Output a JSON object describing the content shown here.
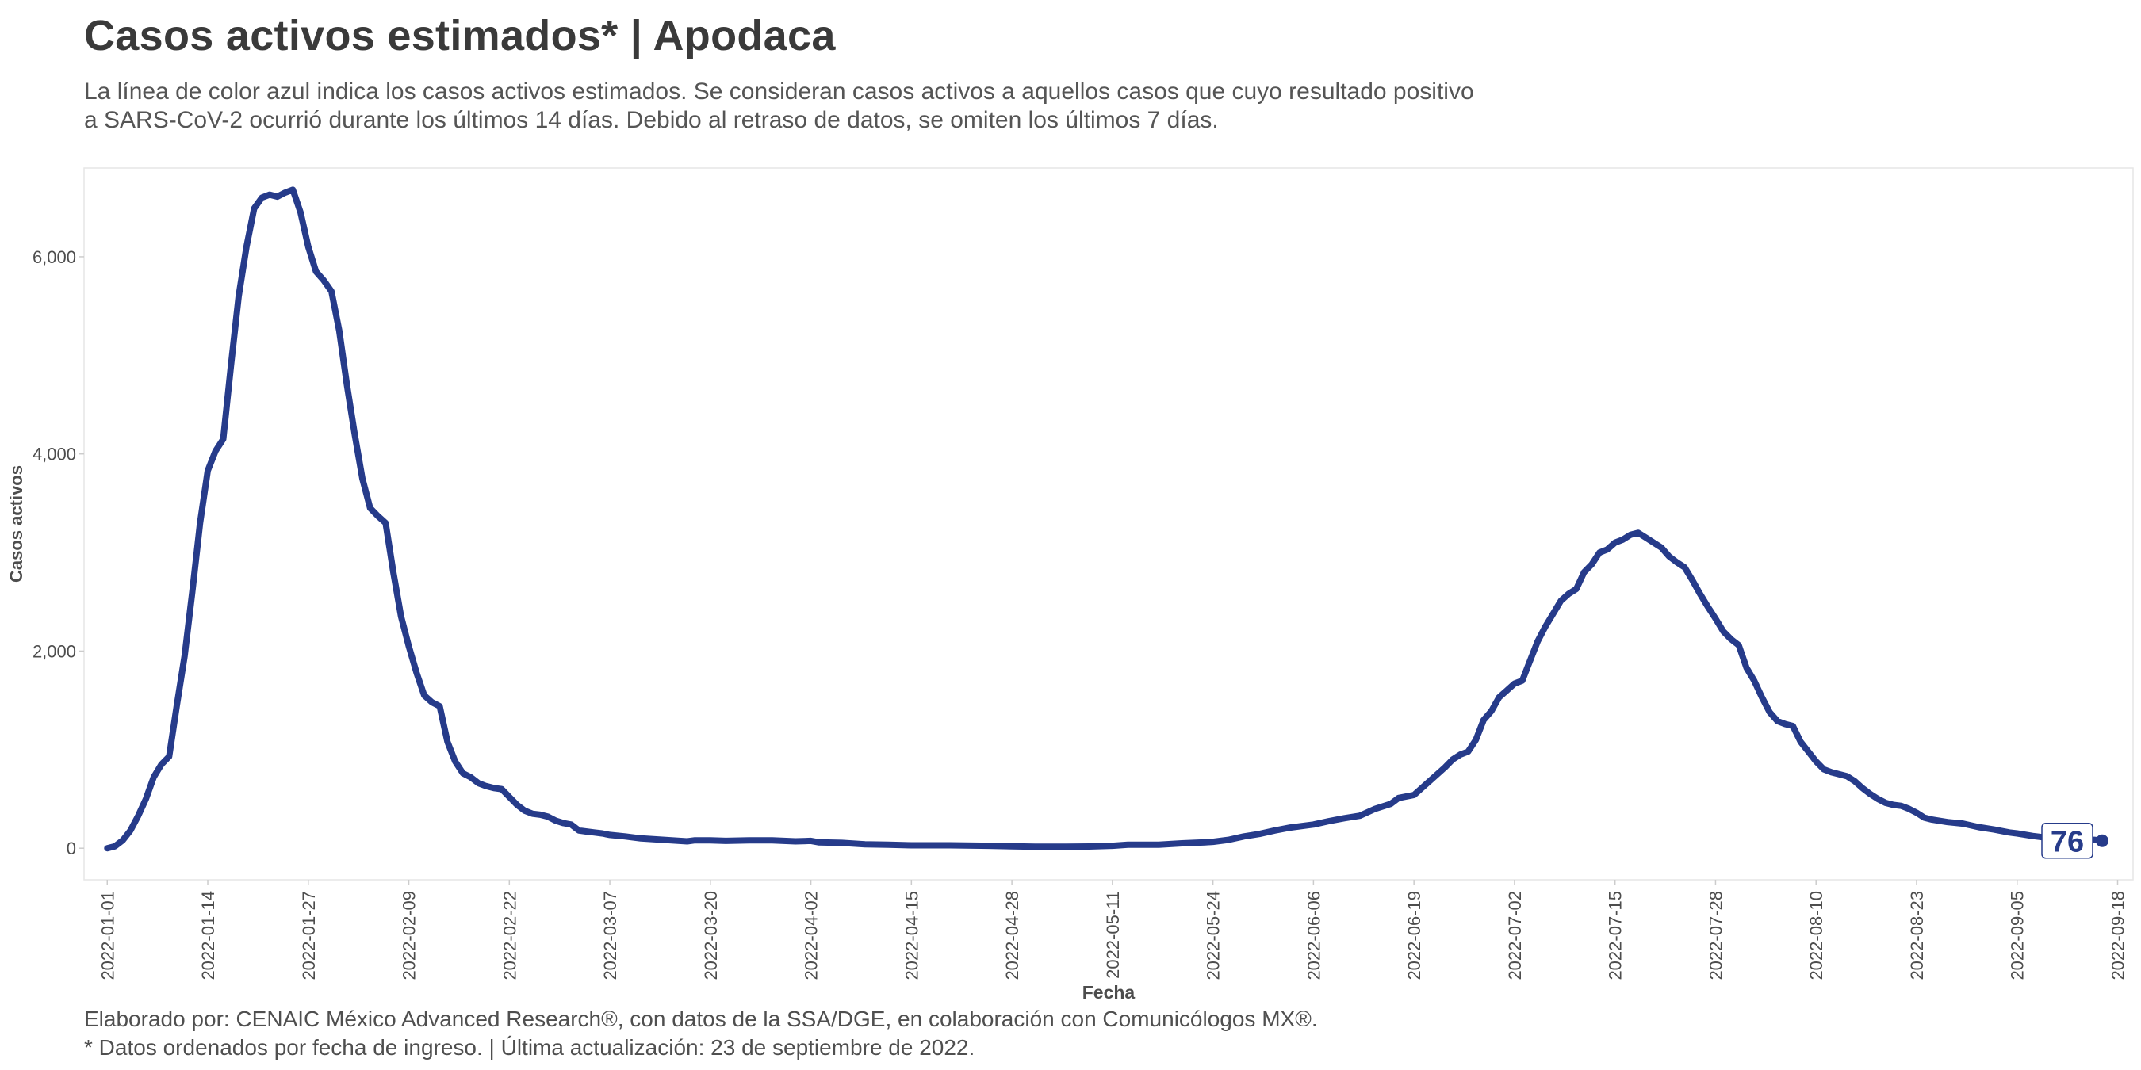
{
  "title": "Casos activos estimados* | Apodaca",
  "subtitle_lines": [
    "La línea de color azul indica los casos activos estimados. Se consideran casos activos a aquellos casos que cuyo resultado positivo",
    "a SARS-CoV-2 ocurrió durante los últimos 14 días. Debido al retraso de datos, se omiten los últimos 7 días."
  ],
  "caption_lines": [
    "Elaborado por: CENAIC México Advanced Research®, con datos de la SSA/DGE, en colaboración con Comunicólogos MX®.",
    "* Datos ordenados por fecha de ingreso. | Última actualización: 23 de septiembre de 2022."
  ],
  "colors": {
    "line": "#263b8a",
    "axis_text": "#4d4d4d",
    "panel_border": "#e6e6e6"
  },
  "chart_data": {
    "type": "line",
    "xlabel": "Fecha",
    "ylabel": "Casos activos",
    "x_start": "2022-01-01",
    "x_ticks": [
      "2022-01-01",
      "2022-01-14",
      "2022-01-27",
      "2022-02-09",
      "2022-02-22",
      "2022-03-07",
      "2022-03-20",
      "2022-04-02",
      "2022-04-15",
      "2022-04-28",
      "2022-05-11",
      "2022-05-24",
      "2022-06-06",
      "2022-06-19",
      "2022-07-02",
      "2022-07-15",
      "2022-07-28",
      "2022-08-10",
      "2022-08-23",
      "2022-09-05",
      "2022-09-18"
    ],
    "y_ticks": [
      0,
      2000,
      4000,
      6000
    ],
    "y_tick_labels": [
      "0",
      "2,000",
      "4,000",
      "6,000"
    ],
    "ylim": [
      -320,
      6900
    ],
    "xlim": [
      "2021-12-29",
      "2022-09-20"
    ],
    "grid": false,
    "last_value_label": "76",
    "series": [
      {
        "values": [
          {
            "x": "2022-01-01",
            "y": 0
          },
          {
            "x": "2022-01-02",
            "y": 20
          },
          {
            "x": "2022-01-03",
            "y": 80
          },
          {
            "x": "2022-01-04",
            "y": 180
          },
          {
            "x": "2022-01-05",
            "y": 330
          },
          {
            "x": "2022-01-06",
            "y": 500
          },
          {
            "x": "2022-01-07",
            "y": 720
          },
          {
            "x": "2022-01-08",
            "y": 850
          },
          {
            "x": "2022-01-09",
            "y": 930
          },
          {
            "x": "2022-01-10",
            "y": 1450
          },
          {
            "x": "2022-01-11",
            "y": 1950
          },
          {
            "x": "2022-01-12",
            "y": 2600
          },
          {
            "x": "2022-01-13",
            "y": 3300
          },
          {
            "x": "2022-01-14",
            "y": 3830
          },
          {
            "x": "2022-01-15",
            "y": 4030
          },
          {
            "x": "2022-01-16",
            "y": 4150
          },
          {
            "x": "2022-01-17",
            "y": 4900
          },
          {
            "x": "2022-01-18",
            "y": 5600
          },
          {
            "x": "2022-01-19",
            "y": 6100
          },
          {
            "x": "2022-01-20",
            "y": 6490
          },
          {
            "x": "2022-01-21",
            "y": 6600
          },
          {
            "x": "2022-01-22",
            "y": 6630
          },
          {
            "x": "2022-01-23",
            "y": 6610
          },
          {
            "x": "2022-01-24",
            "y": 6650
          },
          {
            "x": "2022-01-25",
            "y": 6680
          },
          {
            "x": "2022-01-26",
            "y": 6450
          },
          {
            "x": "2022-01-27",
            "y": 6100
          },
          {
            "x": "2022-01-28",
            "y": 5850
          },
          {
            "x": "2022-01-29",
            "y": 5760
          },
          {
            "x": "2022-01-30",
            "y": 5650
          },
          {
            "x": "2022-01-31",
            "y": 5250
          },
          {
            "x": "2022-02-01",
            "y": 4700
          },
          {
            "x": "2022-02-02",
            "y": 4200
          },
          {
            "x": "2022-02-03",
            "y": 3750
          },
          {
            "x": "2022-02-04",
            "y": 3450
          },
          {
            "x": "2022-02-05",
            "y": 3370
          },
          {
            "x": "2022-02-06",
            "y": 3300
          },
          {
            "x": "2022-02-07",
            "y": 2800
          },
          {
            "x": "2022-02-08",
            "y": 2350
          },
          {
            "x": "2022-02-09",
            "y": 2050
          },
          {
            "x": "2022-02-10",
            "y": 1780
          },
          {
            "x": "2022-02-11",
            "y": 1550
          },
          {
            "x": "2022-02-12",
            "y": 1480
          },
          {
            "x": "2022-02-13",
            "y": 1440
          },
          {
            "x": "2022-02-14",
            "y": 1080
          },
          {
            "x": "2022-02-15",
            "y": 880
          },
          {
            "x": "2022-02-16",
            "y": 760
          },
          {
            "x": "2022-02-17",
            "y": 720
          },
          {
            "x": "2022-02-18",
            "y": 660
          },
          {
            "x": "2022-02-19",
            "y": 630
          },
          {
            "x": "2022-02-20",
            "y": 610
          },
          {
            "x": "2022-02-21",
            "y": 600
          },
          {
            "x": "2022-02-22",
            "y": 520
          },
          {
            "x": "2022-02-23",
            "y": 440
          },
          {
            "x": "2022-02-24",
            "y": 380
          },
          {
            "x": "2022-02-25",
            "y": 350
          },
          {
            "x": "2022-02-26",
            "y": 340
          },
          {
            "x": "2022-02-27",
            "y": 320
          },
          {
            "x": "2022-02-28",
            "y": 280
          },
          {
            "x": "2022-03-01",
            "y": 255
          },
          {
            "x": "2022-03-02",
            "y": 240
          },
          {
            "x": "2022-03-03",
            "y": 180
          },
          {
            "x": "2022-03-04",
            "y": 170
          },
          {
            "x": "2022-03-05",
            "y": 160
          },
          {
            "x": "2022-03-06",
            "y": 150
          },
          {
            "x": "2022-03-07",
            "y": 135
          },
          {
            "x": "2022-03-09",
            "y": 120
          },
          {
            "x": "2022-03-11",
            "y": 100
          },
          {
            "x": "2022-03-13",
            "y": 90
          },
          {
            "x": "2022-03-15",
            "y": 80
          },
          {
            "x": "2022-03-17",
            "y": 70
          },
          {
            "x": "2022-03-18",
            "y": 80
          },
          {
            "x": "2022-03-20",
            "y": 80
          },
          {
            "x": "2022-03-22",
            "y": 75
          },
          {
            "x": "2022-03-25",
            "y": 80
          },
          {
            "x": "2022-03-28",
            "y": 80
          },
          {
            "x": "2022-03-31",
            "y": 70
          },
          {
            "x": "2022-04-02",
            "y": 75
          },
          {
            "x": "2022-04-03",
            "y": 60
          },
          {
            "x": "2022-04-06",
            "y": 55
          },
          {
            "x": "2022-04-09",
            "y": 40
          },
          {
            "x": "2022-04-12",
            "y": 35
          },
          {
            "x": "2022-04-15",
            "y": 30
          },
          {
            "x": "2022-04-20",
            "y": 30
          },
          {
            "x": "2022-04-25",
            "y": 25
          },
          {
            "x": "2022-04-28",
            "y": 20
          },
          {
            "x": "2022-05-01",
            "y": 15
          },
          {
            "x": "2022-05-05",
            "y": 15
          },
          {
            "x": "2022-05-08",
            "y": 18
          },
          {
            "x": "2022-05-11",
            "y": 25
          },
          {
            "x": "2022-05-13",
            "y": 35
          },
          {
            "x": "2022-05-17",
            "y": 35
          },
          {
            "x": "2022-05-20",
            "y": 50
          },
          {
            "x": "2022-05-23",
            "y": 60
          },
          {
            "x": "2022-05-24",
            "y": 65
          },
          {
            "x": "2022-05-26",
            "y": 85
          },
          {
            "x": "2022-05-28",
            "y": 120
          },
          {
            "x": "2022-05-30",
            "y": 145
          },
          {
            "x": "2022-06-01",
            "y": 180
          },
          {
            "x": "2022-06-03",
            "y": 210
          },
          {
            "x": "2022-06-06",
            "y": 240
          },
          {
            "x": "2022-06-08",
            "y": 275
          },
          {
            "x": "2022-06-10",
            "y": 305
          },
          {
            "x": "2022-06-12",
            "y": 330
          },
          {
            "x": "2022-06-14",
            "y": 400
          },
          {
            "x": "2022-06-16",
            "y": 450
          },
          {
            "x": "2022-06-17",
            "y": 510
          },
          {
            "x": "2022-06-19",
            "y": 540
          },
          {
            "x": "2022-06-21",
            "y": 680
          },
          {
            "x": "2022-06-23",
            "y": 820
          },
          {
            "x": "2022-06-24",
            "y": 900
          },
          {
            "x": "2022-06-25",
            "y": 950
          },
          {
            "x": "2022-06-26",
            "y": 980
          },
          {
            "x": "2022-06-27",
            "y": 1100
          },
          {
            "x": "2022-06-28",
            "y": 1300
          },
          {
            "x": "2022-06-29",
            "y": 1390
          },
          {
            "x": "2022-06-30",
            "y": 1530
          },
          {
            "x": "2022-07-01",
            "y": 1600
          },
          {
            "x": "2022-07-02",
            "y": 1670
          },
          {
            "x": "2022-07-03",
            "y": 1700
          },
          {
            "x": "2022-07-04",
            "y": 1900
          },
          {
            "x": "2022-07-05",
            "y": 2100
          },
          {
            "x": "2022-07-06",
            "y": 2250
          },
          {
            "x": "2022-07-07",
            "y": 2380
          },
          {
            "x": "2022-07-08",
            "y": 2510
          },
          {
            "x": "2022-07-09",
            "y": 2580
          },
          {
            "x": "2022-07-10",
            "y": 2630
          },
          {
            "x": "2022-07-11",
            "y": 2800
          },
          {
            "x": "2022-07-12",
            "y": 2880
          },
          {
            "x": "2022-07-13",
            "y": 3000
          },
          {
            "x": "2022-07-14",
            "y": 3030
          },
          {
            "x": "2022-07-15",
            "y": 3100
          },
          {
            "x": "2022-07-16",
            "y": 3130
          },
          {
            "x": "2022-07-17",
            "y": 3180
          },
          {
            "x": "2022-07-18",
            "y": 3200
          },
          {
            "x": "2022-07-19",
            "y": 3150
          },
          {
            "x": "2022-07-20",
            "y": 3100
          },
          {
            "x": "2022-07-21",
            "y": 3050
          },
          {
            "x": "2022-07-22",
            "y": 2960
          },
          {
            "x": "2022-07-23",
            "y": 2900
          },
          {
            "x": "2022-07-24",
            "y": 2850
          },
          {
            "x": "2022-07-25",
            "y": 2720
          },
          {
            "x": "2022-07-26",
            "y": 2580
          },
          {
            "x": "2022-07-27",
            "y": 2450
          },
          {
            "x": "2022-07-28",
            "y": 2330
          },
          {
            "x": "2022-07-29",
            "y": 2200
          },
          {
            "x": "2022-07-30",
            "y": 2120
          },
          {
            "x": "2022-07-31",
            "y": 2060
          },
          {
            "x": "2022-08-01",
            "y": 1830
          },
          {
            "x": "2022-08-02",
            "y": 1700
          },
          {
            "x": "2022-08-03",
            "y": 1530
          },
          {
            "x": "2022-08-04",
            "y": 1380
          },
          {
            "x": "2022-08-05",
            "y": 1290
          },
          {
            "x": "2022-08-06",
            "y": 1260
          },
          {
            "x": "2022-08-07",
            "y": 1240
          },
          {
            "x": "2022-08-08",
            "y": 1080
          },
          {
            "x": "2022-08-09",
            "y": 980
          },
          {
            "x": "2022-08-10",
            "y": 880
          },
          {
            "x": "2022-08-11",
            "y": 800
          },
          {
            "x": "2022-08-12",
            "y": 770
          },
          {
            "x": "2022-08-13",
            "y": 750
          },
          {
            "x": "2022-08-14",
            "y": 730
          },
          {
            "x": "2022-08-15",
            "y": 680
          },
          {
            "x": "2022-08-16",
            "y": 610
          },
          {
            "x": "2022-08-17",
            "y": 550
          },
          {
            "x": "2022-08-18",
            "y": 500
          },
          {
            "x": "2022-08-19",
            "y": 460
          },
          {
            "x": "2022-08-20",
            "y": 440
          },
          {
            "x": "2022-08-21",
            "y": 430
          },
          {
            "x": "2022-08-22",
            "y": 400
          },
          {
            "x": "2022-08-23",
            "y": 360
          },
          {
            "x": "2022-08-24",
            "y": 310
          },
          {
            "x": "2022-08-25",
            "y": 290
          },
          {
            "x": "2022-08-27",
            "y": 265
          },
          {
            "x": "2022-08-29",
            "y": 250
          },
          {
            "x": "2022-08-31",
            "y": 215
          },
          {
            "x": "2022-09-02",
            "y": 190
          },
          {
            "x": "2022-09-04",
            "y": 160
          },
          {
            "x": "2022-09-05",
            "y": 150
          },
          {
            "x": "2022-09-07",
            "y": 125
          },
          {
            "x": "2022-09-09",
            "y": 105
          },
          {
            "x": "2022-09-11",
            "y": 100
          },
          {
            "x": "2022-09-13",
            "y": 90
          },
          {
            "x": "2022-09-15",
            "y": 85
          },
          {
            "x": "2022-09-16",
            "y": 76
          }
        ]
      }
    ]
  }
}
